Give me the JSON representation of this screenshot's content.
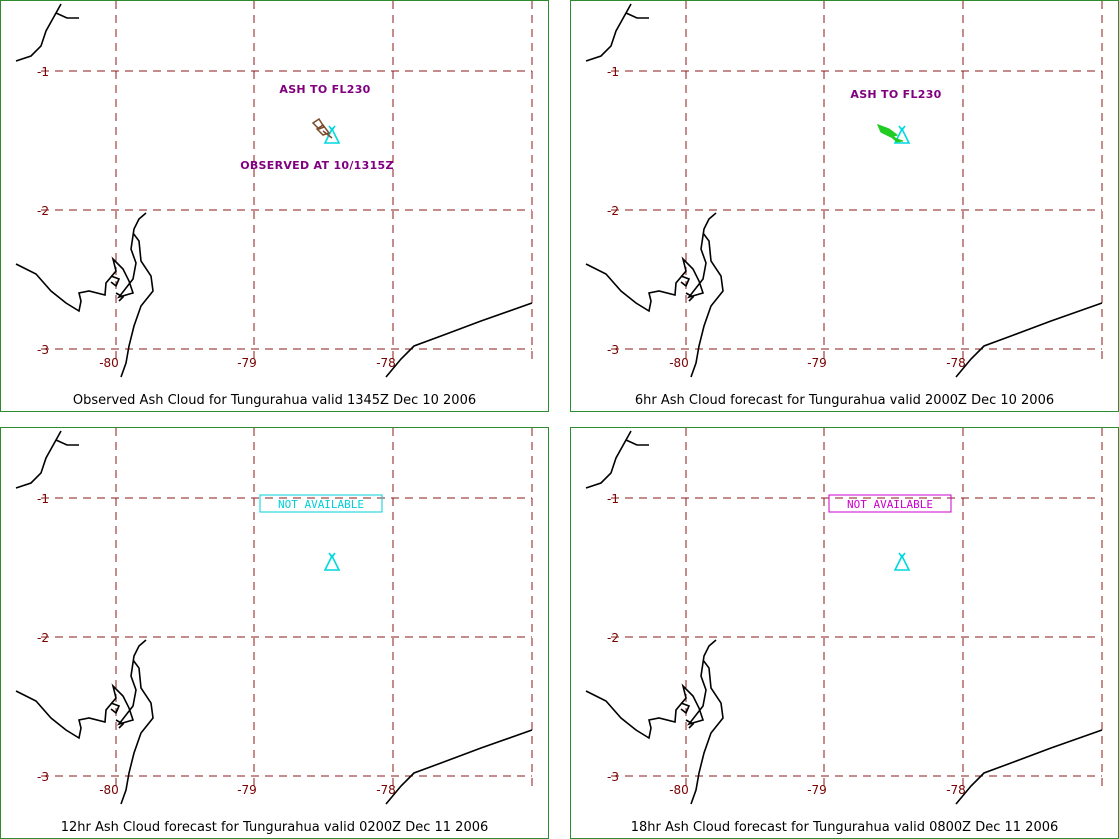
{
  "grid": {
    "lat_labels": [
      "-1",
      "-2",
      "-3"
    ],
    "lon_labels": [
      "-80",
      "-79",
      "-78"
    ]
  },
  "colors": {
    "border": "#2e8b2e",
    "grid": "#8b1a1a",
    "volcano": "#00d8e0",
    "annotation": "#800080",
    "observed_ash": "#7a4a2a",
    "forecast_ash": "#22cc22",
    "na_cyan": "#00d0d8",
    "na_magenta": "#cc00cc"
  },
  "panels": [
    {
      "caption": "Observed Ash Cloud for Tungurahua valid 1345Z Dec 10 2006",
      "ash_label": "ASH TO FL230",
      "observed_label": "OBSERVED AT 10/1315Z",
      "status": "",
      "icon": "volcano-icon"
    },
    {
      "caption": "6hr Ash Cloud forecast for Tungurahua valid 2000Z Dec 10 2006",
      "ash_label": "ASH TO FL230",
      "observed_label": "",
      "status": "",
      "icon": "volcano-icon"
    },
    {
      "caption": "12hr Ash Cloud forecast for Tungurahua valid 0200Z Dec 11 2006",
      "ash_label": "",
      "observed_label": "",
      "status": "NOT AVAILABLE",
      "icon": "volcano-icon"
    },
    {
      "caption": "18hr Ash Cloud forecast for Tungurahua valid 0800Z Dec 11 2006",
      "ash_label": "",
      "observed_label": "",
      "status": "NOT AVAILABLE",
      "icon": "volcano-icon"
    }
  ]
}
